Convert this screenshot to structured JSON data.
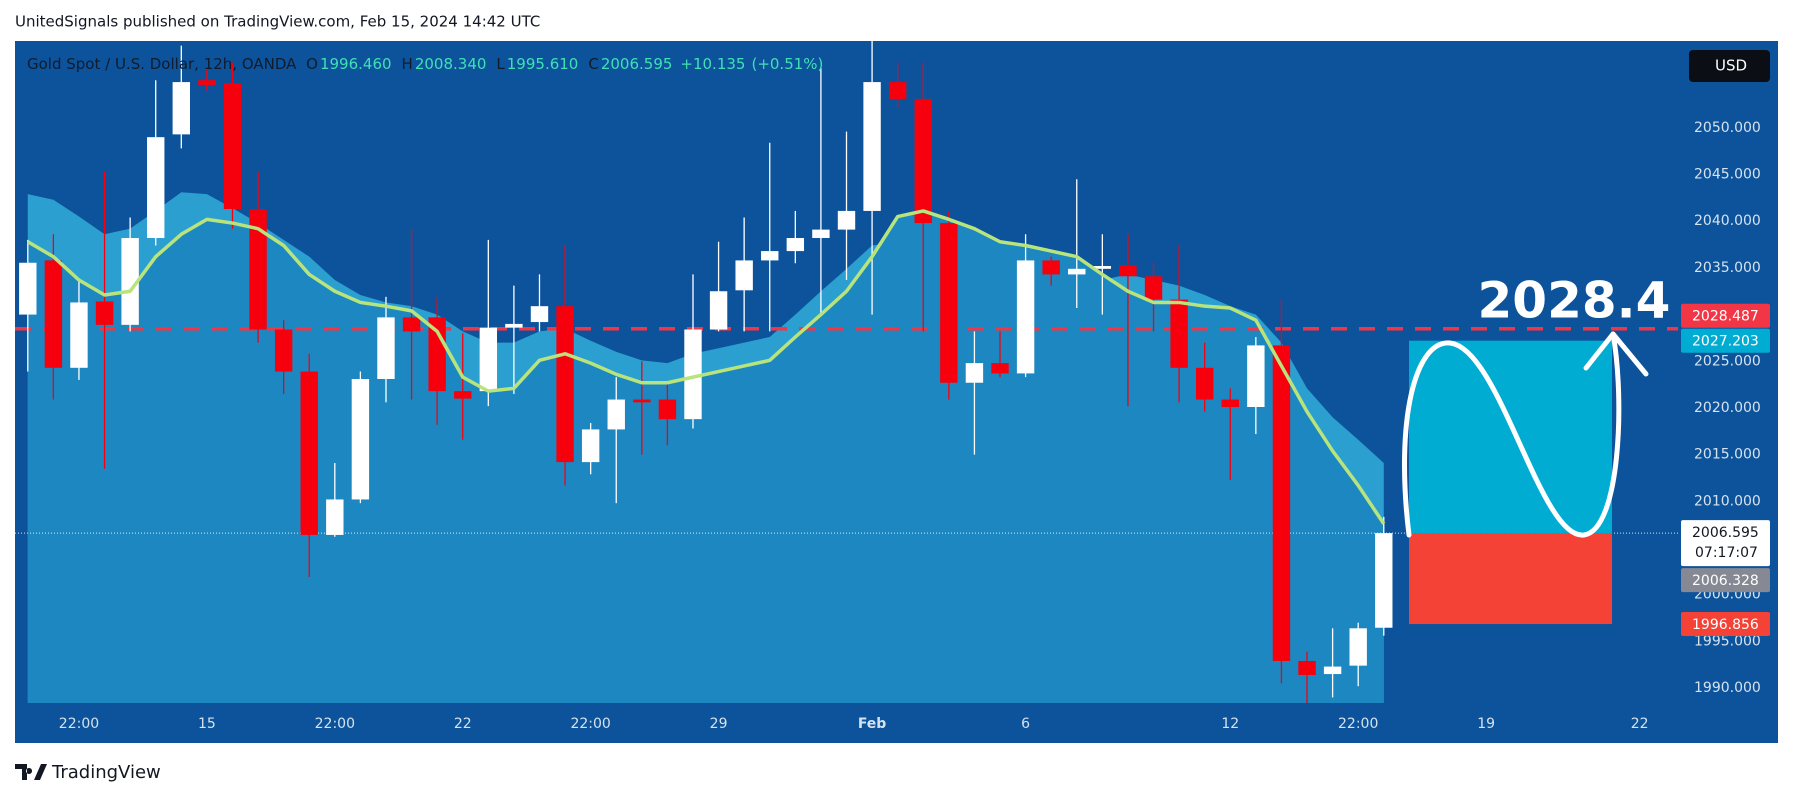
{
  "header": {
    "title": "UnitedSignals published on TradingView.com, Feb 15, 2024 14:42 UTC"
  },
  "footer": {
    "brand": "TradingView"
  },
  "chart_data": {
    "type": "candlestick",
    "legend": {
      "symbol": "Gold Spot / U.S. Dollar, 12h, OANDA",
      "open": {
        "key": "O",
        "value": 1996.46,
        "label": "1996.460"
      },
      "high": {
        "key": "H",
        "value": 2008.34,
        "label": "2008.340"
      },
      "low": {
        "key": "L",
        "value": 1995.61,
        "label": "1995.610"
      },
      "close": {
        "key": "C",
        "value": 2006.595,
        "label": "2006.595"
      },
      "change": {
        "value": 10.135,
        "label": "+10.135"
      },
      "change_pct": {
        "value": 0.51,
        "label": "(+0.51%)"
      }
    },
    "currency": "USD",
    "annotation": "2028.4",
    "categories": [
      null,
      null,
      "22:00",
      null,
      null,
      null,
      null,
      "15",
      null,
      null,
      null,
      null,
      "22:00",
      null,
      null,
      null,
      null,
      "22",
      null,
      null,
      null,
      null,
      "22:00",
      null,
      null,
      null,
      null,
      "29",
      null,
      null,
      null,
      null,
      null,
      "Feb",
      null,
      null,
      null,
      null,
      null,
      "6",
      null,
      null,
      null,
      null,
      null,
      null,
      null,
      "12",
      null,
      null,
      null,
      null,
      "22:00",
      null,
      null,
      null,
      null,
      "19",
      null,
      null,
      null,
      null,
      null,
      "22",
      null
    ],
    "open": [
      2030.0,
      2035.8,
      2024.3,
      2031.4,
      2028.9,
      2038.2,
      2049.3,
      2055.1,
      2054.8,
      2041.3,
      2028.4,
      2023.9,
      2006.4,
      2010.2,
      2023.1,
      2029.7,
      2029.7,
      2021.8,
      2021.8,
      2028.6,
      2029.2,
      2030.9,
      2014.2,
      2017.7,
      2020.9,
      2020.9,
      2018.8,
      2028.4,
      2032.6,
      2035.8,
      2036.8,
      2038.2,
      2039.1,
      2041.1,
      2054.9,
      2053.1,
      2039.8,
      2022.7,
      2024.8,
      2023.7,
      2035.8,
      2034.3,
      2034.9,
      2035.3,
      2034.1,
      2031.6,
      2024.3,
      2020.9,
      2020.1,
      2026.7,
      1992.9,
      1991.5,
      1992.4,
      1996.46,
      null,
      null,
      null,
      null,
      null,
      null,
      null,
      null,
      null,
      null,
      null
    ],
    "high": [
      2038.0,
      2038.6,
      2033.7,
      2045.3,
      2040.4,
      2055.1,
      2058.8,
      2056.4,
      2057.0,
      2045.3,
      2029.4,
      2025.8,
      2014.1,
      2023.9,
      2031.9,
      2039.2,
      2031.9,
      2028.0,
      2038.0,
      2033.1,
      2034.3,
      2037.4,
      2018.4,
      2023.3,
      2025.0,
      2022.7,
      2034.3,
      2037.8,
      2040.4,
      2048.4,
      2041.1,
      2056.4,
      2049.6,
      2059.4,
      2057.0,
      2057.0,
      2041.1,
      2028.2,
      2028.2,
      2038.6,
      2036.2,
      2044.5,
      2038.6,
      2038.6,
      2035.6,
      2037.4,
      2027.0,
      2022.1,
      2027.6,
      2031.6,
      1993.9,
      1996.4,
      1997.0,
      2008.34,
      null,
      null,
      null,
      null,
      null,
      null,
      null,
      null,
      null,
      null,
      null
    ],
    "low": [
      2023.9,
      2020.9,
      2023.0,
      2013.5,
      2028.2,
      2037.4,
      2047.8,
      2054.0,
      2039.2,
      2027.0,
      2021.5,
      2001.9,
      2006.2,
      2009.8,
      2020.6,
      2020.9,
      2018.2,
      2016.6,
      2020.2,
      2021.5,
      2028.2,
      2011.7,
      2012.9,
      2009.8,
      2015.0,
      2016.0,
      2017.8,
      2028.2,
      2028.2,
      2028.2,
      2035.5,
      2030.0,
      2033.7,
      2030.0,
      2052.1,
      2028.2,
      2020.9,
      2015.0,
      2023.3,
      2023.3,
      2033.1,
      2030.7,
      2030.0,
      2020.2,
      2028.2,
      2020.6,
      2019.6,
      2012.3,
      2017.2,
      1990.5,
      1988.4,
      1989.0,
      1990.2,
      1995.61,
      null,
      null,
      null,
      null,
      null,
      null,
      null,
      null,
      null,
      null,
      null
    ],
    "close": [
      2035.55,
      2024.3,
      2031.3,
      2028.9,
      2038.2,
      2049.0,
      2054.9,
      2054.6,
      2041.3,
      2028.4,
      2023.9,
      2006.4,
      2010.2,
      2023.1,
      2029.7,
      2028.2,
      2021.8,
      2021.0,
      2028.6,
      2029.0,
      2030.9,
      2014.2,
      2017.7,
      2020.9,
      2020.6,
      2018.8,
      2028.4,
      2032.5,
      2035.8,
      2036.8,
      2038.2,
      2039.1,
      2041.1,
      2054.9,
      2053.1,
      2039.8,
      2022.7,
      2024.8,
      2023.7,
      2035.8,
      2034.3,
      2034.9,
      2035.2,
      2034.1,
      2031.6,
      2024.3,
      2020.9,
      2020.1,
      2026.7,
      1992.9,
      1991.4,
      1992.3,
      1996.4,
      2006.595,
      null,
      null,
      null,
      null,
      null,
      null,
      null,
      null,
      null,
      null,
      null
    ],
    "up_color": "#ffffff",
    "down_color": "#f7000d",
    "moving_average": {
      "color": "#b9e47c",
      "fill": "#1c87c0",
      "values": [
        2037.8,
        2036.2,
        2033.7,
        2032.1,
        2032.5,
        2036.2,
        2038.6,
        2040.2,
        2039.8,
        2039.2,
        2037.4,
        2034.3,
        2032.5,
        2031.3,
        2030.9,
        2030.4,
        2028.2,
        2023.3,
        2021.8,
        2022.1,
        2025.1,
        2025.8,
        2024.8,
        2023.6,
        2022.7,
        2022.7,
        2023.3,
        2023.9,
        2024.5,
        2025.1,
        2027.6,
        2030.0,
        2032.5,
        2036.2,
        2040.5,
        2041.1,
        2040.2,
        2039.2,
        2037.8,
        2037.4,
        2036.8,
        2036.2,
        2034.3,
        2032.5,
        2031.3,
        2031.3,
        2030.9,
        2030.7,
        2029.4,
        2024.5,
        2019.6,
        2015.4,
        2011.7,
        2007.6,
        null,
        null,
        null,
        null,
        null,
        null,
        null,
        null,
        null,
        null,
        null
      ]
    },
    "upper_band": {
      "fill": "#2c9fd1",
      "values": [
        2042.9,
        2042.3,
        2040.5,
        2038.6,
        2039.2,
        2041.1,
        2043.1,
        2042.9,
        2041.4,
        2039.8,
        2038.0,
        2036.2,
        2033.7,
        2032.1,
        2031.3,
        2030.9,
        2030.0,
        2028.2,
        2027.0,
        2027.0,
        2028.2,
        2028.5,
        2027.2,
        2026.0,
        2025.1,
        2024.8,
        2025.8,
        2026.4,
        2027.0,
        2027.6,
        2030.0,
        2032.5,
        2034.9,
        2037.4,
        2037.8,
        2037.8,
        2036.5,
        2034.9,
        2034.3,
        2034.6,
        2034.3,
        2033.7,
        2033.7,
        2034.3,
        2033.7,
        2033.1,
        2032.1,
        2030.9,
        2030.0,
        2027.0,
        2022.1,
        2019.0,
        2016.6,
        2014.1,
        null,
        null,
        null,
        null,
        null,
        null,
        null,
        null,
        null,
        null,
        null
      ]
    },
    "ylim": [
      1988.4,
      2059.3
    ],
    "yticks": [
      {
        "value": 2050,
        "label": "2050.000"
      },
      {
        "value": 2045,
        "label": "2045.000"
      },
      {
        "value": 2040,
        "label": "2040.000"
      },
      {
        "value": 2035,
        "label": "2035.000"
      },
      {
        "value": 2025,
        "label": "2025.000"
      },
      {
        "value": 2020,
        "label": "2020.000"
      },
      {
        "value": 2015,
        "label": "2015.000"
      },
      {
        "value": 2010,
        "label": "2010.000"
      },
      {
        "value": 2000,
        "label": "2000.000"
      },
      {
        "value": 1995,
        "label": "1995.000"
      },
      {
        "value": 1990,
        "label": "1990.000"
      }
    ],
    "horizontal_line": {
      "value": 2028.487,
      "label": "2028.487",
      "color": "#f23645"
    },
    "position": {
      "target": {
        "value": 2027.203,
        "label": "2027.203",
        "color": "#00acd1"
      },
      "entry": {
        "value": 2006.595,
        "label": "2006.595"
      },
      "stop": {
        "value": 1996.856,
        "label": "1996.856",
        "color": "#f44336"
      }
    },
    "countdown": "07:17:07",
    "bid_price": {
      "value": 2006.328,
      "label": "2006.328"
    }
  }
}
